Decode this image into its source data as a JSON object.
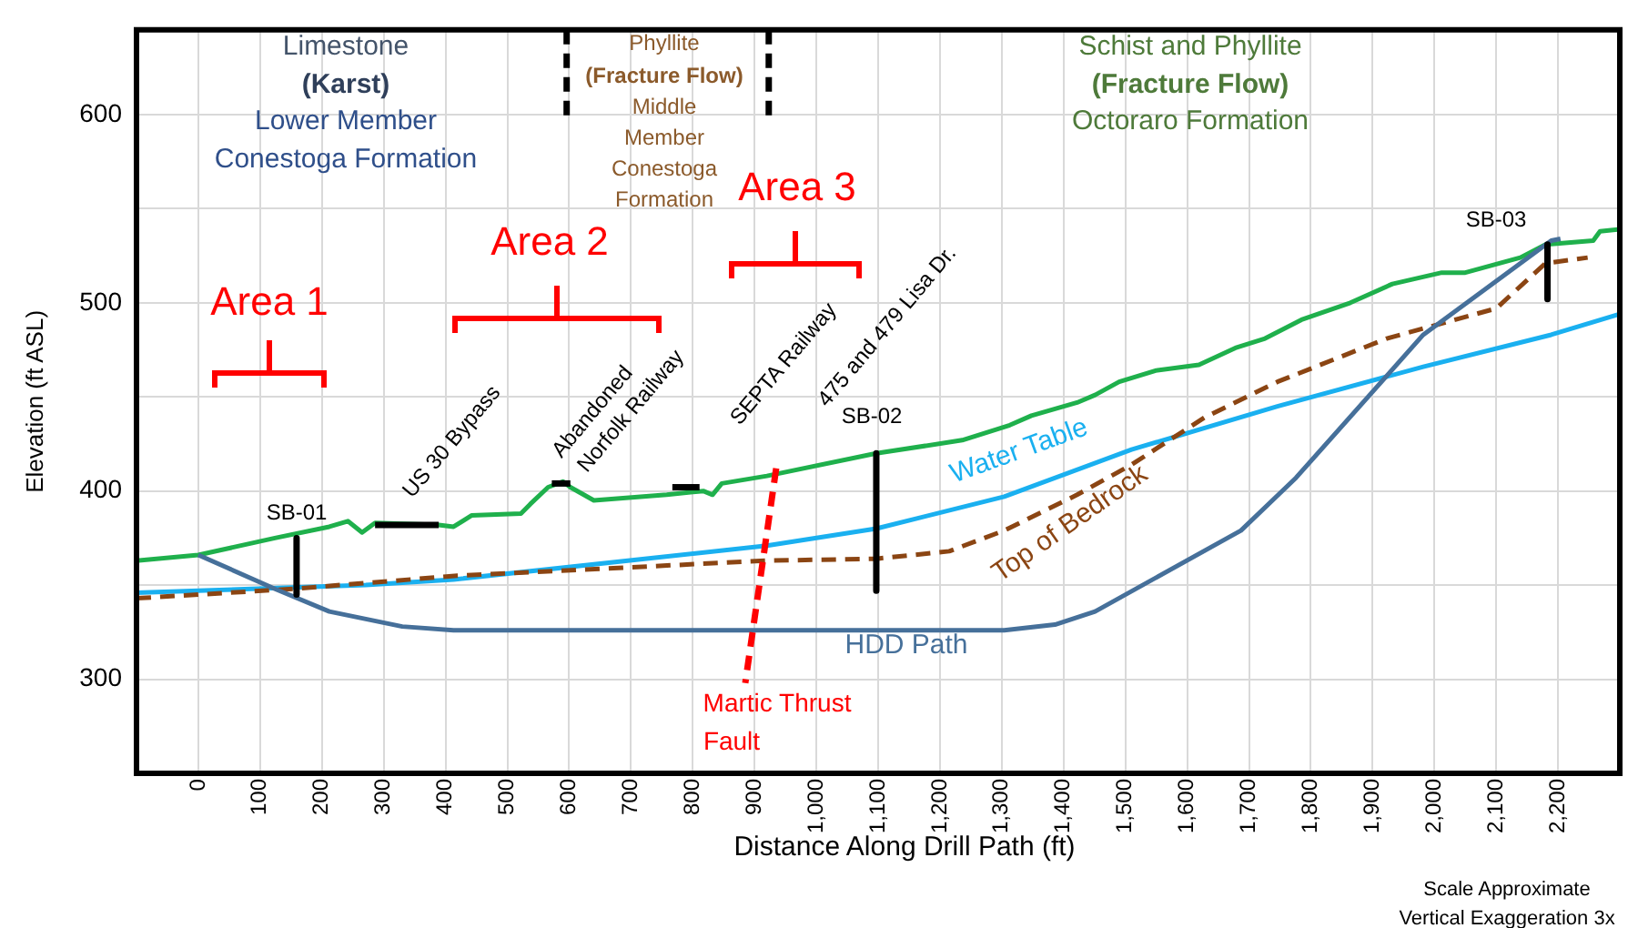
{
  "chart_data": {
    "type": "line",
    "xlabel": "Distance Along Drill Path (ft)",
    "ylabel": "Elevation (ft ASL)",
    "xlim": [
      -100,
      2300
    ],
    "ylim": [
      250,
      645
    ],
    "xticks": [
      0,
      100,
      200,
      300,
      400,
      500,
      600,
      700,
      800,
      900,
      {
        "value": 1000,
        "label": "1,000"
      },
      {
        "value": 1100,
        "label": "1,100"
      },
      {
        "value": 1200,
        "label": "1,200"
      },
      {
        "value": 1300,
        "label": "1,300"
      },
      {
        "value": 1400,
        "label": "1,400"
      },
      {
        "value": 1500,
        "label": "1,500"
      },
      {
        "value": 1600,
        "label": "1,600"
      },
      {
        "value": 1700,
        "label": "1,700"
      },
      {
        "value": 1800,
        "label": "1,800"
      },
      {
        "value": 1900,
        "label": "1,900"
      },
      {
        "value": 2000,
        "label": "2,000"
      },
      {
        "value": 2100,
        "label": "2,100"
      },
      {
        "value": 2200,
        "label": "2,200"
      }
    ],
    "yticks": [
      300,
      {
        "value": 350,
        "label": null
      },
      400,
      {
        "value": 450,
        "label": null
      },
      500,
      {
        "value": 550,
        "label": null
      },
      600
    ],
    "grid": true,
    "legend": false,
    "marker": "none",
    "series": [
      {
        "color": "#1fb04c",
        "line_style": "solid",
        "x": [
          -100,
          0,
          124,
          212,
          242,
          265,
          286,
          389,
          413,
          442,
          522,
          537,
          566,
          590,
          602,
          640,
          758,
          817,
          832,
          847,
          920,
          1097,
          1236,
          1313,
          1348,
          1422,
          1451,
          1490,
          1549,
          1619,
          1678,
          1726,
          1785,
          1864,
          1932,
          2012,
          2050,
          2139,
          2180,
          2257,
          2268,
          2300
        ],
        "values": [
          363,
          366,
          375,
          381,
          384,
          378,
          383,
          382,
          381,
          387,
          388,
          393,
          402,
          405,
          402,
          395,
          398,
          400,
          398,
          404,
          408,
          420,
          427,
          435,
          440,
          447,
          451,
          458,
          464,
          467,
          476,
          481,
          491,
          500,
          510,
          516,
          516,
          524,
          531,
          533,
          538,
          539
        ]
      },
      {
        "name": "Water Table",
        "color": "#1ab0f0",
        "line_style": "solid",
        "x": [
          -100,
          0,
          271,
          413,
          920,
          1097,
          1304,
          1510,
          1746,
          1982,
          2189,
          2300
        ],
        "values": [
          346,
          347,
          350,
          353,
          371,
          380,
          397,
          422,
          445,
          466,
          483,
          494
        ]
      },
      {
        "name": "Top of Bedrock",
        "color": "#8b4513",
        "line_style": "dashed",
        "x": [
          -100,
          153,
          419,
          920,
          1097,
          1215,
          1304,
          1422,
          1510,
          1628,
          1746,
          1923,
          2100,
          2180,
          2248
        ],
        "values": [
          343,
          348,
          355,
          363,
          364,
          368,
          379,
          398,
          414,
          439,
          458,
          481,
          497,
          521,
          524
        ]
      },
      {
        "name": "HDD Path",
        "color": "#46709a",
        "line_style": "solid",
        "x": [
          0,
          124,
          212,
          330,
          413,
          1304,
          1386,
          1451,
          1687,
          1776,
          1982,
          2189,
          2204
        ],
        "values": [
          366,
          348,
          336,
          328,
          326,
          326,
          329,
          336,
          379,
          407,
          483,
          533,
          534
        ]
      },
      {
        "color": "#ff0000",
        "line_style": "dashed",
        "x": [
          935,
          885
        ],
        "values": [
          412,
          298
        ]
      },
      {
        "color": "#000000",
        "line_style": "dashed",
        "x": [
          596,
          596
        ],
        "values": [
          645,
          597
        ]
      },
      {
        "color": "#000000",
        "line_style": "dashed",
        "x": [
          923,
          923
        ],
        "values": [
          645,
          597
        ]
      },
      {
        "color": "#000000",
        "line_style": "solid",
        "x": [
          159,
          159
        ],
        "values": [
          375,
          345
        ]
      },
      {
        "color": "#000000",
        "line_style": "solid",
        "x": [
          1097,
          1097
        ],
        "values": [
          420,
          347
        ]
      },
      {
        "color": "#000000",
        "line_style": "solid",
        "x": [
          2183,
          2183
        ],
        "values": [
          531,
          502
        ]
      },
      {
        "color": "#000000",
        "line_style": "solid",
        "x": [
          286,
          389
        ],
        "values": [
          382,
          382
        ]
      },
      {
        "color": "#000000",
        "line_style": "solid",
        "x": [
          572,
          602
        ],
        "values": [
          404,
          404
        ]
      },
      {
        "color": "#000000",
        "line_style": "solid",
        "x": [
          767,
          811
        ],
        "values": [
          402,
          402
        ]
      }
    ],
    "annotations": [
      "Limestone",
      "(Karst)",
      "Lower Member",
      "Conestoga Formation",
      "Phyllite",
      "(Fracture Flow)",
      "Middle",
      "Member",
      "Conestoga",
      "Formation",
      "Schist and Phyllite",
      "(Fracture Flow)",
      "Octoraro Formation",
      "Area 1",
      "Area 2",
      "Area 3",
      "US 30 Bypass",
      "Abandoned",
      "Norfolk Railway",
      "SEPTA Railway",
      "475 and 479 Lisa Dr.",
      "SB-01",
      "SB-02",
      "SB-03",
      "Martic Thrust",
      "Fault",
      "Scale Approximate",
      "Vertical Exaggeration 3x"
    ]
  }
}
